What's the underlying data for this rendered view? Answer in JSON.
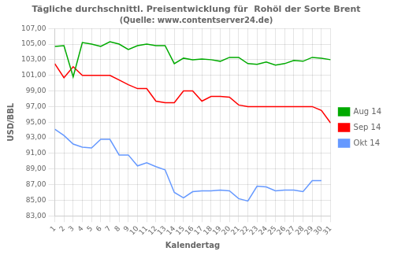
{
  "chart_data": {
    "type": "line",
    "title": "Tägliche durchschnittl. Preisentwicklung für  Rohöl der Sorte Brent",
    "subtitle": "(Quelle: www.contentserver24.de)",
    "xlabel": "Kalendertag",
    "ylabel": "USD/BBL",
    "x": [
      1,
      2,
      3,
      4,
      5,
      6,
      7,
      8,
      9,
      10,
      11,
      12,
      13,
      14,
      15,
      16,
      17,
      18,
      19,
      20,
      21,
      22,
      23,
      24,
      25,
      26,
      27,
      28,
      29,
      30,
      31
    ],
    "series": [
      {
        "name": "Aug 14",
        "color": "#00AA00",
        "values": [
          104.7,
          104.8,
          100.8,
          105.2,
          105.0,
          104.7,
          105.3,
          105.0,
          104.3,
          104.8,
          105.0,
          104.8,
          104.8,
          102.5,
          103.2,
          103.0,
          103.1,
          103.0,
          102.8,
          103.3,
          103.3,
          102.5,
          102.4,
          102.7,
          102.3,
          102.5,
          102.9,
          102.8,
          103.3,
          103.2,
          103.0
        ]
      },
      {
        "name": "Sep 14",
        "color": "#FF0000",
        "values": [
          102.5,
          100.7,
          102.1,
          101.0,
          101.0,
          101.0,
          101.0,
          100.4,
          99.8,
          99.3,
          99.3,
          97.7,
          97.5,
          97.5,
          99.0,
          99.0,
          97.7,
          98.3,
          98.3,
          98.2,
          97.2,
          97.0,
          97.0,
          97.0,
          97.0,
          97.0,
          97.0,
          97.0,
          97.0,
          96.5,
          94.9
        ]
      },
      {
        "name": "Okt 14",
        "color": "#6699FF",
        "values": [
          94.1,
          93.3,
          92.2,
          91.8,
          91.7,
          92.8,
          92.8,
          90.8,
          90.8,
          89.4,
          89.8,
          89.3,
          88.9,
          86.0,
          85.3,
          86.1,
          86.2,
          86.2,
          86.3,
          86.2,
          85.2,
          84.9,
          86.8,
          86.7,
          86.2,
          86.3,
          86.3,
          86.1,
          87.5,
          87.5,
          null
        ]
      }
    ],
    "xlim": [
      1,
      31
    ],
    "xticks": [
      1,
      2,
      3,
      4,
      5,
      6,
      7,
      8,
      9,
      10,
      11,
      12,
      13,
      14,
      15,
      16,
      17,
      18,
      19,
      20,
      21,
      22,
      23,
      24,
      25,
      26,
      27,
      28,
      29,
      30,
      31
    ],
    "ylim": [
      83.0,
      107.0
    ],
    "yticks": [
      {
        "value": 83.0,
        "label": "83,00"
      },
      {
        "value": 85.0,
        "label": "85,00"
      },
      {
        "value": 87.0,
        "label": "87,00"
      },
      {
        "value": 89.0,
        "label": "89,00"
      },
      {
        "value": 91.0,
        "label": "91,00"
      },
      {
        "value": 93.0,
        "label": "93,00"
      },
      {
        "value": 95.0,
        "label": "95,00"
      },
      {
        "value": 97.0,
        "label": "97,00"
      },
      {
        "value": 99.0,
        "label": "99,00"
      },
      {
        "value": 101.0,
        "label": "101,00"
      },
      {
        "value": 103.0,
        "label": "103,00"
      },
      {
        "value": 105.0,
        "label": "105,00"
      },
      {
        "value": 107.0,
        "label": "107,00"
      }
    ],
    "grid": true,
    "legend": "right"
  }
}
